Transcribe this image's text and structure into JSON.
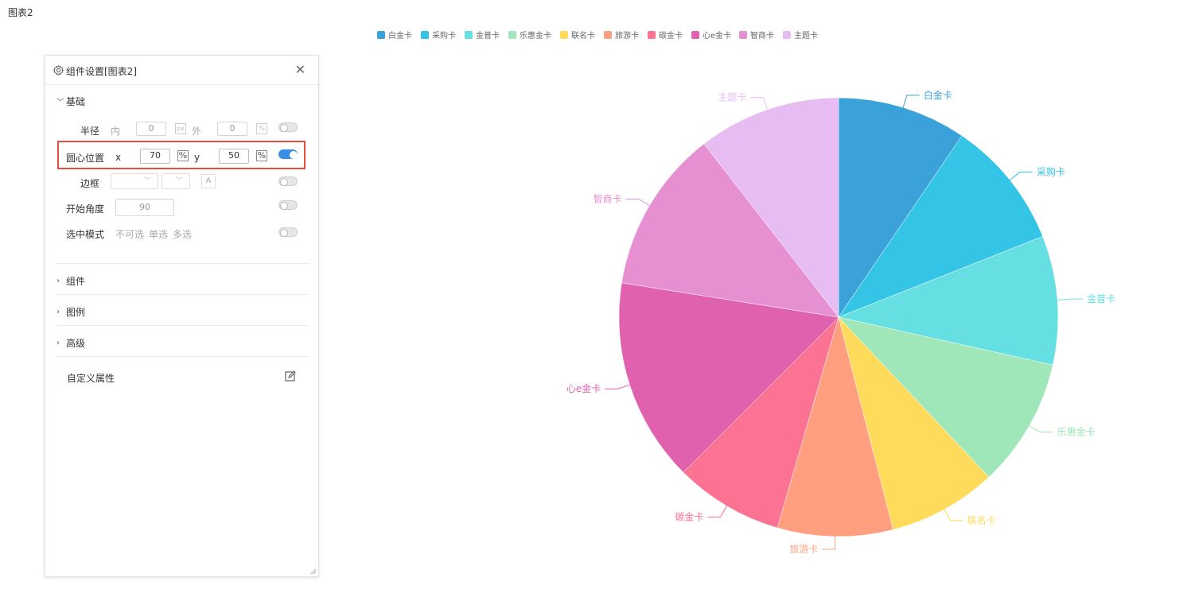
{
  "page": {
    "title": "图表2"
  },
  "chart_data": {
    "type": "pie",
    "categories": [
      "白金卡",
      "采购卡",
      "金普卡",
      "乐惠金卡",
      "联名卡",
      "旅游卡",
      "碳金卡",
      "心e金卡",
      "智商卡",
      "主题卡"
    ],
    "values": [
      9.5,
      9.5,
      9.5,
      9.5,
      8.0,
      8.5,
      8.0,
      15.0,
      12.0,
      10.5
    ],
    "colors": [
      "#3ba1d9",
      "#33c4e6",
      "#66dfe2",
      "#9fe6b8",
      "#ffdb5c",
      "#ff9f7f",
      "#fb7293",
      "#e062ae",
      "#e690d1",
      "#e7bcf3"
    ],
    "center_pct": [
      70,
      50
    ],
    "start_angle_deg": 90,
    "legend_position": "top-center"
  },
  "panel": {
    "title": "组件设置[图表2]",
    "icons": {
      "gear": "gear-icon",
      "close": "close-icon",
      "edit": "edit-icon"
    },
    "close_glyph": "✕",
    "basic": {
      "label": "基础",
      "radius": {
        "label": "半径",
        "inner_label": "内",
        "inner_value": "0",
        "inner_unit": "px",
        "outer_label": "外",
        "outer_value": "0",
        "outer_unit": "%",
        "enabled": false
      },
      "center": {
        "label": "圆心位置",
        "x_label": "x",
        "x_value": "70",
        "x_unit": "%",
        "y_label": "y",
        "y_value": "50",
        "y_unit": "%",
        "enabled": true
      },
      "border": {
        "label": "边框",
        "font_btn": "A",
        "enabled": false
      },
      "start_angle": {
        "label": "开始角度",
        "value": "90",
        "enabled": false
      },
      "select_mode": {
        "label": "选中模式",
        "options": [
          "不可选",
          "单选",
          "多选"
        ],
        "enabled": false
      }
    },
    "sections": [
      "组件",
      "图例",
      "高级"
    ],
    "custom_attr_label": "自定义属性"
  }
}
